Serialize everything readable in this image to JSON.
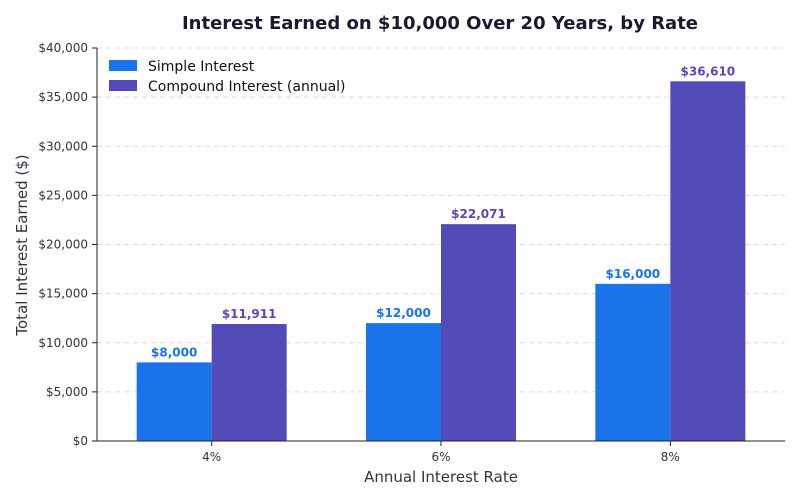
{
  "chart_data": {
    "type": "bar",
    "title": "Interest Earned on $10,000 Over 20 Years, by Rate",
    "xlabel": "Annual Interest Rate",
    "ylabel": "Total Interest Earned ($)",
    "categories": [
      "4%",
      "6%",
      "8%"
    ],
    "series": [
      {
        "name": "Simple Interest",
        "values": [
          8000,
          12000,
          16000
        ],
        "labels": [
          "$8,000",
          "$12,000",
          "$16,000"
        ],
        "color": "#1a73e8"
      },
      {
        "name": "Compound Interest (annual)",
        "values": [
          11911,
          22071,
          36610
        ],
        "labels": [
          "$11,911",
          "$22,071",
          "$36,610"
        ],
        "color": "#524bb8"
      }
    ],
    "ylim": [
      0,
      40000
    ],
    "yticks": [
      0,
      5000,
      10000,
      15000,
      20000,
      25000,
      30000,
      35000,
      40000
    ],
    "ytick_labels": [
      "$0",
      "$5,000",
      "$10,000",
      "$15,000",
      "$20,000",
      "$25,000",
      "$30,000",
      "$35,000",
      "$40,000"
    ],
    "grid": "horizontal dashed",
    "legend_position": "top-left"
  }
}
